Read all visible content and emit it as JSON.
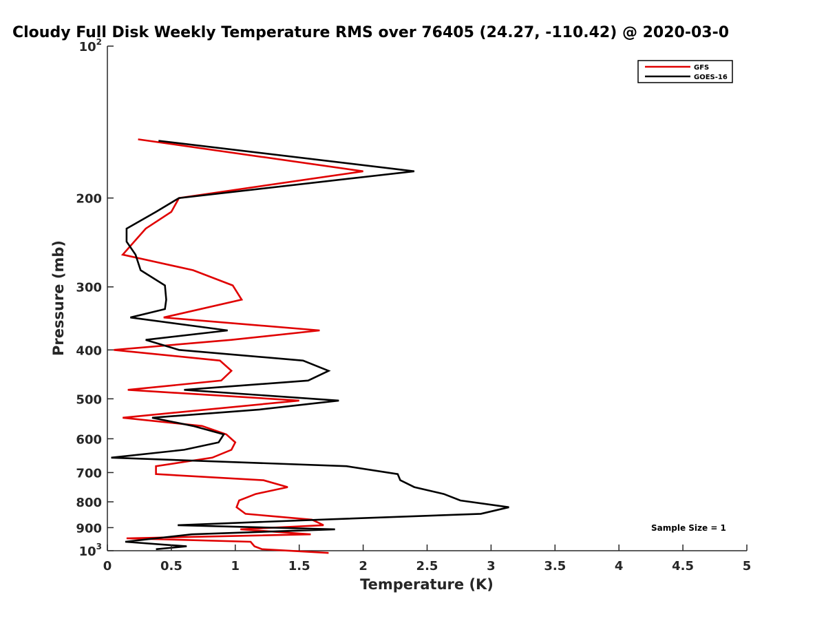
{
  "chart_data": {
    "type": "line",
    "title": "Cloudy Full Disk Weekly Temperature RMS over 76405 (24.27, -110.42) @ 2020-03-0",
    "xlabel": "Temperature (K)",
    "ylabel": "Pressure (mb)",
    "xlim": [
      0,
      5
    ],
    "ylim": [
      1000,
      100
    ],
    "yscale": "log",
    "y_reversed": true,
    "grid": false,
    "legend_position": "top-right",
    "x_ticks": [
      "0",
      "0.5",
      "1",
      "1.5",
      "2",
      "2.5",
      "3",
      "3.5",
      "4",
      "4.5",
      "5"
    ],
    "y_ticks": [
      {
        "value": 100,
        "label": "10",
        "sup": "2"
      },
      {
        "value": 200,
        "label": "200",
        "sup": ""
      },
      {
        "value": 300,
        "label": "300",
        "sup": ""
      },
      {
        "value": 400,
        "label": "400",
        "sup": ""
      },
      {
        "value": 500,
        "label": "500",
        "sup": ""
      },
      {
        "value": 600,
        "label": "600",
        "sup": ""
      },
      {
        "value": 700,
        "label": "700",
        "sup": ""
      },
      {
        "value": 800,
        "label": "800",
        "sup": ""
      },
      {
        "value": 900,
        "label": "900",
        "sup": ""
      },
      {
        "value": 1000,
        "label": "10",
        "sup": "3"
      }
    ],
    "annotation": "Sample Size = 1",
    "series": [
      {
        "name": "GFS",
        "color": "#e00000",
        "x": [
          0.24,
          2.0,
          0.56,
          0.5,
          0.3,
          0.12,
          0.67,
          0.98,
          1.05,
          0.44,
          1.66,
          0.97,
          0.05,
          0.88,
          0.97,
          0.89,
          0.16,
          1.5,
          0.12,
          0.74,
          0.93,
          1.0,
          0.97,
          0.82,
          0.38,
          0.38,
          1.22,
          1.41,
          1.16,
          1.03,
          1.01,
          1.08,
          1.6,
          1.69,
          1.04,
          1.59,
          0.15,
          1.12,
          1.15,
          1.21,
          1.73
        ],
        "y": [
          153,
          177,
          200,
          213,
          230,
          259,
          278,
          298,
          318,
          345,
          366,
          382,
          400,
          420,
          440,
          460,
          480,
          504,
          545,
          566,
          588,
          610,
          631,
          654,
          680,
          705,
          725,
          748,
          772,
          795,
          820,
          845,
          868,
          890,
          907,
          928,
          945,
          960,
          980,
          993,
          1010
        ]
      },
      {
        "name": "GOES-16",
        "color": "#000000",
        "x": [
          0.4,
          2.4,
          0.56,
          0.38,
          0.15,
          0.15,
          0.22,
          0.26,
          0.45,
          0.46,
          0.45,
          0.18,
          0.94,
          0.3,
          0.56,
          1.53,
          1.73,
          1.57,
          0.6,
          1.81,
          1.19,
          0.35,
          0.67,
          0.91,
          0.87,
          0.6,
          0.03,
          1.87,
          2.27,
          2.29,
          2.4,
          2.63,
          2.76,
          3.14,
          2.92,
          1.66,
          0.55,
          1.78,
          0.66,
          0.14,
          0.62,
          0.38
        ],
        "y": [
          154,
          177,
          200,
          213,
          230,
          244,
          259,
          278,
          298,
          318,
          332,
          345,
          366,
          382,
          400,
          420,
          440,
          460,
          480,
          504,
          525,
          545,
          566,
          588,
          610,
          631,
          654,
          680,
          705,
          725,
          748,
          772,
          795,
          820,
          845,
          868,
          890,
          907,
          928,
          960,
          980,
          993
        ]
      }
    ]
  }
}
